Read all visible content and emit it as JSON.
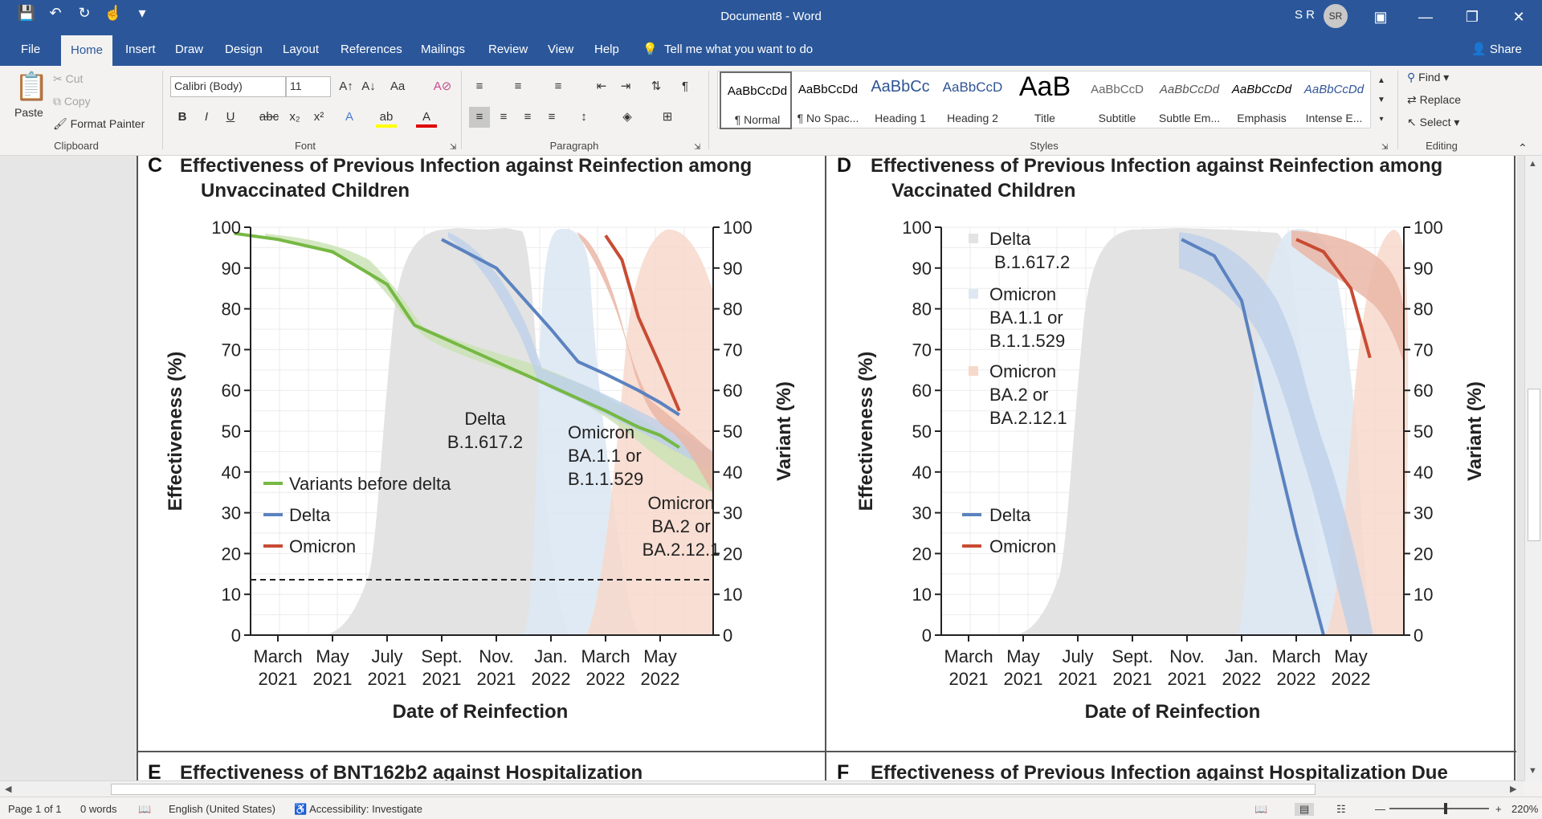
{
  "title_bar": {
    "document_title": "Document8  -  Word",
    "user_initials": "S R",
    "avatar_text": "SR",
    "qat_icons": [
      "save-icon",
      "undo-icon",
      "redo-icon",
      "touch-mode-icon",
      "customize-icon"
    ]
  },
  "menu_tabs": [
    "File",
    "Home",
    "Insert",
    "Draw",
    "Design",
    "Layout",
    "References",
    "Mailings",
    "Review",
    "View",
    "Help"
  ],
  "active_tab": "Home",
  "tell_me": "Tell me what you want to do",
  "share": "Share",
  "ribbon": {
    "clipboard": {
      "paste": "Paste",
      "cut": "Cut",
      "copy": "Copy",
      "format_painter": "Format Painter",
      "label": "Clipboard"
    },
    "font": {
      "name": "Calibri (Body)",
      "size": "11",
      "label": "Font"
    },
    "paragraph": {
      "label": "Paragraph"
    },
    "styles": {
      "label": "Styles",
      "items": [
        {
          "sample": "AaBbCcDd",
          "name": "¶ Normal"
        },
        {
          "sample": "AaBbCcDd",
          "name": "¶ No Spac..."
        },
        {
          "sample": "AaBbCc",
          "name": "Heading 1"
        },
        {
          "sample": "AaBbCcD",
          "name": "Heading 2"
        },
        {
          "sample": "AaB",
          "name": "Title"
        },
        {
          "sample": "AaBbCcD",
          "name": "Subtitle"
        },
        {
          "sample": "AaBbCcDd",
          "name": "Subtle Em..."
        },
        {
          "sample": "AaBbCcDd",
          "name": "Emphasis"
        },
        {
          "sample": "AaBbCcDd",
          "name": "Intense E..."
        }
      ]
    },
    "editing": {
      "find": "Find",
      "replace": "Replace",
      "select": "Select",
      "label": "Editing"
    }
  },
  "document": {
    "panel_c": {
      "letter": "C",
      "title_line1": "Effectiveness of Previous Infection against Reinfection among",
      "title_line2": "Unvaccinated Children",
      "y_left_label": "Effectiveness (%)",
      "y_right_label": "Variant (%)",
      "x_label": "Date of Reinfection",
      "legend": [
        "Variants before delta",
        "Delta",
        "Omicron"
      ],
      "area_labels": {
        "delta": [
          "Delta",
          "B.1.617.2"
        ],
        "ba1": [
          "Omicron",
          "BA.1.1 or",
          "B.1.1.529"
        ],
        "ba2": [
          "Omicron",
          "BA.2 or",
          "BA.2.12.1"
        ]
      }
    },
    "panel_d": {
      "letter": "D",
      "title_line1": "Effectiveness of Previous Infection against Reinfection among",
      "title_line2": "Vaccinated Children",
      "y_left_label": "Effectiveness (%)",
      "y_right_label": "Variant (%)",
      "x_label": "Date of Reinfection",
      "area_legend": [
        [
          "Delta",
          "B.1.617.2"
        ],
        [
          "Omicron",
          "BA.1.1 or",
          "B.1.1.529"
        ],
        [
          "Omicron",
          "BA.2 or",
          "BA.2.12.1"
        ]
      ],
      "line_legend": [
        "Delta",
        "Omicron"
      ]
    },
    "panel_e_title": "Effectiveness of BNT162b2 against Hospitalization",
    "panel_f_title": "Effectiveness of Previous Infection against Hospitalization Due",
    "panel_e_letter": "E",
    "panel_f_letter": "F"
  },
  "chart_data": [
    {
      "type": "line",
      "title": "Effectiveness of Previous Infection against Reinfection among Unvaccinated Children",
      "xlabel": "Date of Reinfection",
      "ylabel": "Effectiveness (%)",
      "y2label": "Variant (%)",
      "ylim": [
        0,
        100
      ],
      "x_ticks": [
        "March 2021",
        "May 2021",
        "July 2021",
        "Sept. 2021",
        "Nov. 2021",
        "Jan. 2022",
        "March 2022",
        "May 2022"
      ],
      "y_ticks": [
        0,
        10,
        20,
        30,
        40,
        50,
        60,
        70,
        80,
        90,
        100
      ],
      "x": [
        -0.8,
        0,
        1,
        2,
        2.5,
        3,
        4,
        5,
        5.5,
        6,
        6.3,
        6.6,
        7,
        7.35
      ],
      "series": [
        {
          "name": "Variants before delta",
          "color": "#76b843",
          "values": [
            98.5,
            97,
            94,
            86,
            76,
            73,
            67,
            61,
            58,
            55,
            53,
            51,
            49,
            46
          ]
        },
        {
          "name": "Delta",
          "color": "#5b82c0",
          "values": [
            null,
            null,
            null,
            null,
            null,
            97,
            90,
            75,
            67,
            64,
            62,
            60,
            57,
            54
          ]
        },
        {
          "name": "Omicron",
          "color": "#c84b33",
          "values": [
            null,
            null,
            null,
            null,
            null,
            null,
            null,
            null,
            null,
            98,
            92,
            78,
            66,
            55
          ]
        }
      ],
      "reference_line": 16.7,
      "variant_areas": [
        {
          "name": "Delta B.1.617.2",
          "color": "#e3e3e3"
        },
        {
          "name": "Omicron BA.1.1 or B.1.1.529",
          "color": "#dde8f3"
        },
        {
          "name": "Omicron BA.2 or BA.2.12.1",
          "color": "#f7d8cb"
        }
      ]
    },
    {
      "type": "line",
      "title": "Effectiveness of Previous Infection against Reinfection among Vaccinated Children",
      "xlabel": "Date of Reinfection",
      "ylabel": "Effectiveness (%)",
      "y2label": "Variant (%)",
      "ylim": [
        0,
        100
      ],
      "x_ticks": [
        "March 2021",
        "May 2021",
        "July 2021",
        "Sept. 2021",
        "Nov. 2021",
        "Jan. 2022",
        "March 2022",
        "May 2022"
      ],
      "y_ticks": [
        0,
        10,
        20,
        30,
        40,
        50,
        60,
        70,
        80,
        90,
        100
      ],
      "x": [
        3.9,
        4.5,
        5,
        5.5,
        6,
        6.5,
        7,
        7.35
      ],
      "series": [
        {
          "name": "Delta",
          "color": "#5b82c0",
          "values": [
            97,
            93,
            82,
            53,
            25,
            0,
            null,
            null
          ]
        },
        {
          "name": "Omicron",
          "color": "#c84b33",
          "values": [
            null,
            null,
            null,
            null,
            97,
            94,
            85,
            68
          ]
        }
      ],
      "variant_areas": [
        {
          "name": "Delta B.1.617.2",
          "color": "#e3e3e3"
        },
        {
          "name": "Omicron BA.1.1 or B.1.1.529",
          "color": "#dde8f3"
        },
        {
          "name": "Omicron BA.2 or BA.2.12.1",
          "color": "#f7d8cb"
        }
      ]
    }
  ],
  "status_bar": {
    "page": "Page 1 of 1",
    "words": "0 words",
    "language": "English (United States)",
    "accessibility": "Accessibility: Investigate",
    "zoom": "220%"
  }
}
